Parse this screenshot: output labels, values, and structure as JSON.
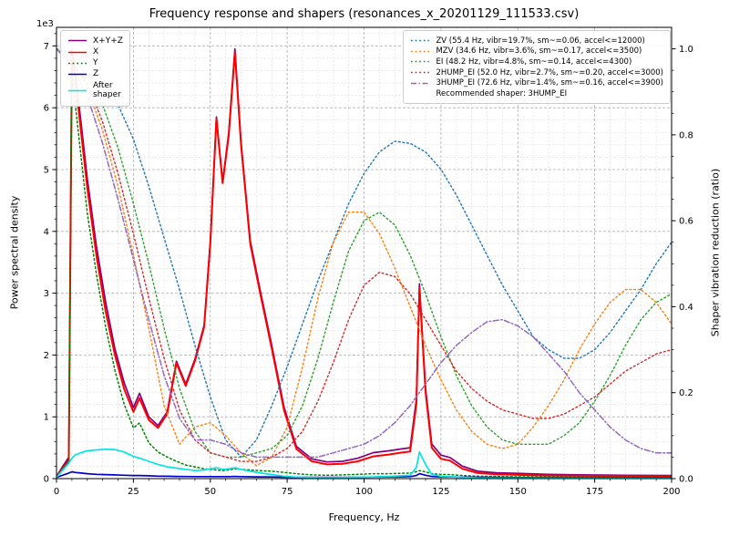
{
  "chart_data": {
    "type": "line",
    "title": "Frequency response and shapers (resonances_x_20201129_111533.csv)",
    "xlabel": "Frequency, Hz",
    "ylabel_left": "Power spectral density",
    "ylabel_right": "Shaper vibration reduction (ratio)",
    "y_offset_text": "1e3",
    "xlim": [
      0,
      200
    ],
    "ylim_left": [
      0,
      7300
    ],
    "ylim_right": [
      0,
      1.05
    ],
    "grid": {
      "x_major": 25,
      "x_minor": 5,
      "y_major": 1000,
      "y_minor": 200,
      "major_color": "#b0b0b0",
      "minor_color": "#e2e2e2"
    },
    "xticks": {
      "values": [
        0,
        25,
        50,
        75,
        100,
        125,
        150,
        175,
        200
      ],
      "labels": [
        "0",
        "25",
        "50",
        "75",
        "100",
        "125",
        "150",
        "175",
        "200"
      ]
    },
    "yticks_left": {
      "values": [
        0,
        1000,
        2000,
        3000,
        4000,
        5000,
        6000,
        7000
      ],
      "labels": [
        "0",
        "1",
        "2",
        "3",
        "4",
        "5",
        "6",
        "7"
      ]
    },
    "yticks_right": {
      "values": [
        0,
        0.2,
        0.4,
        0.6,
        0.8,
        1.0
      ],
      "labels": [
        "0.0",
        "0.2",
        "0.4",
        "0.6",
        "0.8",
        "1.0"
      ]
    },
    "psd": {
      "x": [
        0,
        4,
        5,
        6,
        8,
        10,
        13,
        16,
        19,
        22,
        25,
        27,
        30,
        33,
        36,
        39,
        42,
        45,
        48,
        50,
        52,
        54,
        56,
        58,
        60,
        63,
        66,
        70,
        74,
        78,
        83,
        88,
        93,
        98,
        103,
        108,
        112,
        115,
        117,
        118,
        120,
        122,
        125,
        128,
        132,
        137,
        143,
        150,
        160,
        170,
        185,
        200
      ],
      "series": [
        {
          "name": "X+Y+Z",
          "label": "X+Y+Z",
          "color": "#800080",
          "style": "solid",
          "width": 1.7,
          "values": [
            40,
            350,
            6950,
            6600,
            5750,
            4850,
            3750,
            2850,
            2100,
            1550,
            1150,
            1380,
            1000,
            860,
            1080,
            1900,
            1530,
            1930,
            2480,
            3850,
            5850,
            4800,
            5600,
            6950,
            5450,
            3850,
            3100,
            2150,
            1150,
            520,
            320,
            270,
            280,
            330,
            420,
            450,
            480,
            500,
            1280,
            3150,
            1460,
            560,
            380,
            340,
            200,
            120,
            95,
            85,
            70,
            60,
            55,
            50
          ]
        },
        {
          "name": "X",
          "label": "X",
          "color": "#ff0000",
          "style": "solid",
          "width": 2,
          "values": [
            30,
            300,
            6900,
            6500,
            5600,
            4700,
            3600,
            2700,
            2000,
            1450,
            1080,
            1300,
            950,
            820,
            1050,
            1870,
            1500,
            1900,
            2450,
            3800,
            5820,
            4780,
            5550,
            6900,
            5400,
            3800,
            3050,
            2100,
            1100,
            480,
            280,
            230,
            240,
            280,
            360,
            390,
            420,
            440,
            1200,
            3080,
            1400,
            500,
            320,
            290,
            160,
            90,
            70,
            60,
            50,
            45,
            40,
            35
          ]
        },
        {
          "name": "Y",
          "label": "Y",
          "color": "#008000",
          "style": "dotted",
          "width": 1.5,
          "values": [
            30,
            280,
            6600,
            6100,
            5200,
            4300,
            3300,
            2450,
            1750,
            1200,
            820,
            900,
            580,
            430,
            350,
            280,
            220,
            190,
            160,
            150,
            140,
            130,
            140,
            160,
            150,
            140,
            130,
            120,
            100,
            80,
            60,
            55,
            60,
            70,
            80,
            80,
            85,
            90,
            110,
            130,
            110,
            80,
            70,
            65,
            50,
            40,
            35,
            30,
            28,
            25,
            22,
            20
          ]
        },
        {
          "name": "Z",
          "label": "Z",
          "color": "#0000cc",
          "style": "solid",
          "width": 1.7,
          "values": [
            20,
            90,
            110,
            100,
            90,
            80,
            70,
            65,
            60,
            55,
            50,
            50,
            45,
            40,
            38,
            36,
            34,
            33,
            32,
            32,
            33,
            32,
            33,
            35,
            33,
            30,
            28,
            26,
            24,
            22,
            20,
            20,
            20,
            22,
            25,
            28,
            30,
            32,
            50,
            80,
            55,
            35,
            30,
            28,
            25,
            22,
            20,
            18,
            16,
            15,
            14,
            12
          ]
        },
        {
          "name": "After shaper",
          "label": "After\nshaper",
          "color": "#00e5e5",
          "style": "solid",
          "width": 1.7,
          "values": [
            20,
            250,
            330,
            380,
            420,
            450,
            465,
            475,
            470,
            430,
            360,
            330,
            280,
            230,
            190,
            170,
            150,
            130,
            140,
            160,
            175,
            150,
            160,
            175,
            150,
            120,
            95,
            65,
            40,
            25,
            18,
            15,
            18,
            22,
            28,
            35,
            45,
            55,
            180,
            430,
            230,
            70,
            40,
            30,
            20,
            12,
            10,
            8,
            7,
            6,
            5,
            5
          ]
        }
      ]
    },
    "shapers": {
      "x": [
        0,
        5,
        10,
        15,
        20,
        25,
        30,
        35,
        40,
        45,
        50,
        55,
        60,
        65,
        70,
        75,
        80,
        85,
        90,
        95,
        100,
        105,
        110,
        115,
        120,
        125,
        130,
        135,
        140,
        145,
        150,
        155,
        160,
        165,
        170,
        175,
        180,
        185,
        190,
        195,
        200
      ],
      "series": [
        {
          "name": "ZV",
          "label": "ZV (55.4 Hz, vibr=19.7%, sm~=0.06, accel<=12000)",
          "color": "#1f77b4",
          "style": "dotted",
          "width": 1.4,
          "values": [
            1.0,
            0.99,
            0.97,
            0.93,
            0.87,
            0.79,
            0.68,
            0.56,
            0.44,
            0.31,
            0.19,
            0.09,
            0.05,
            0.09,
            0.17,
            0.26,
            0.36,
            0.46,
            0.55,
            0.64,
            0.71,
            0.76,
            0.785,
            0.78,
            0.76,
            0.72,
            0.66,
            0.59,
            0.52,
            0.45,
            0.39,
            0.33,
            0.3,
            0.28,
            0.28,
            0.3,
            0.34,
            0.39,
            0.44,
            0.5,
            0.55
          ]
        },
        {
          "name": "MZV",
          "label": "MZV (34.6 Hz, vibr=3.6%, sm~=0.17, accel<=3500)",
          "color": "#ff7f0e",
          "style": "dotted",
          "width": 1.4,
          "values": [
            1.0,
            0.97,
            0.91,
            0.81,
            0.68,
            0.52,
            0.35,
            0.17,
            0.08,
            0.12,
            0.13,
            0.1,
            0.06,
            0.03,
            0.05,
            0.12,
            0.26,
            0.42,
            0.55,
            0.62,
            0.62,
            0.57,
            0.49,
            0.4,
            0.31,
            0.23,
            0.16,
            0.11,
            0.08,
            0.07,
            0.08,
            0.12,
            0.17,
            0.23,
            0.3,
            0.36,
            0.41,
            0.44,
            0.44,
            0.41,
            0.36
          ]
        },
        {
          "name": "EI",
          "label": "EI (48.2 Hz, vibr=4.8%, sm~=0.14, accel<=4300)",
          "color": "#2ca02c",
          "style": "dotted",
          "width": 1.4,
          "values": [
            1.0,
            0.98,
            0.94,
            0.87,
            0.77,
            0.64,
            0.5,
            0.35,
            0.21,
            0.11,
            0.06,
            0.05,
            0.05,
            0.06,
            0.07,
            0.1,
            0.17,
            0.28,
            0.41,
            0.53,
            0.6,
            0.62,
            0.59,
            0.52,
            0.43,
            0.33,
            0.24,
            0.17,
            0.12,
            0.09,
            0.08,
            0.08,
            0.08,
            0.1,
            0.13,
            0.18,
            0.24,
            0.31,
            0.37,
            0.41,
            0.43
          ]
        },
        {
          "name": "2HUMP_EI",
          "label": "2HUMP_EI (52.0 Hz, vibr=2.7%, sm~=0.20, accel<=3000)",
          "color": "#d62728",
          "style": "dotted",
          "width": 1.4,
          "values": [
            1.0,
            0.97,
            0.92,
            0.83,
            0.71,
            0.57,
            0.42,
            0.28,
            0.16,
            0.09,
            0.06,
            0.05,
            0.04,
            0.04,
            0.05,
            0.07,
            0.11,
            0.18,
            0.27,
            0.37,
            0.45,
            0.48,
            0.47,
            0.43,
            0.37,
            0.31,
            0.25,
            0.21,
            0.18,
            0.16,
            0.15,
            0.14,
            0.14,
            0.15,
            0.17,
            0.19,
            0.22,
            0.25,
            0.27,
            0.29,
            0.3
          ]
        },
        {
          "name": "3HUMP_EI",
          "label": "3HUMP_EI (72.6 Hz, vibr=1.4%, sm~=0.16, accel<=3900)",
          "color": "#9467bd",
          "style": "dashdot",
          "width": 1.5,
          "values": [
            1.0,
            0.96,
            0.89,
            0.78,
            0.65,
            0.51,
            0.37,
            0.24,
            0.14,
            0.09,
            0.09,
            0.08,
            0.06,
            0.05,
            0.05,
            0.05,
            0.05,
            0.05,
            0.06,
            0.07,
            0.08,
            0.1,
            0.13,
            0.17,
            0.22,
            0.27,
            0.31,
            0.34,
            0.365,
            0.37,
            0.355,
            0.33,
            0.29,
            0.25,
            0.2,
            0.16,
            0.12,
            0.09,
            0.07,
            0.06,
            0.06
          ]
        }
      ]
    },
    "recommended_label": "Recommended shaper: 3HUMP_EI"
  }
}
